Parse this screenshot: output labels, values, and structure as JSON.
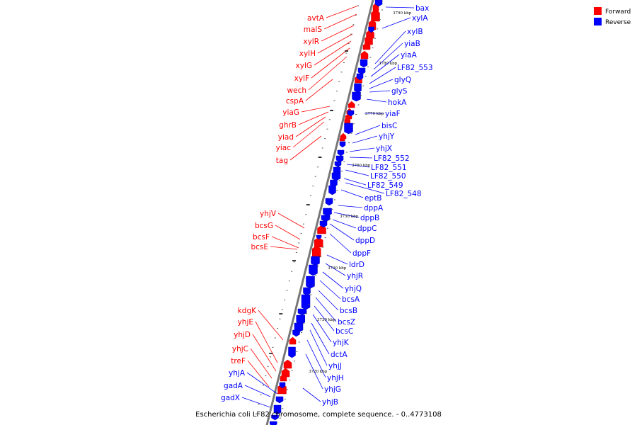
{
  "caption": "Escherichia coli LF82 chromosome, complete sequence. - 0..4773108",
  "legend": {
    "forward": {
      "label": "Forward",
      "color": "#ff0000"
    },
    "reverse": {
      "label": "Reverse",
      "color": "#0000ff"
    }
  },
  "kbp_labels": [
    "3790 kbp",
    "3780 kbp",
    "3770 kbp",
    "3760 kbp",
    "3750 kbp",
    "3740 kbp",
    "3730 kbp",
    "3720 kbp"
  ],
  "forward_genes": [
    "avtA",
    "malS",
    "xylR",
    "xylH",
    "xylG",
    "xylF",
    "wech",
    "cspA",
    "yiaG",
    "ghrB",
    "yiad",
    "yiac",
    "tag",
    "yhjV",
    "bcsG",
    "bcsF",
    "bcsE",
    "kdgK",
    "yhjE",
    "yhjD",
    "yhjC",
    "treF"
  ],
  "reverse_genes": [
    "bax",
    "xylA",
    "xylB",
    "yiaB",
    "yiaA",
    "LF82_553",
    "glyQ",
    "glyS",
    "hokA",
    "yiaF",
    "bisC",
    "yhjY",
    "yhjX",
    "LF82_552",
    "LF82_551",
    "LF82_550",
    "LF82_549",
    "LF82_548",
    "eptB",
    "dppA",
    "dppB",
    "dppC",
    "dppD",
    "dppF",
    "ldrD",
    "yhjR",
    "yhjQ",
    "bcsA",
    "bcsB",
    "bcsZ",
    "bcsC",
    "yhjK",
    "dctA",
    "yhjJ",
    "yhjH",
    "yhjG",
    "yhjB",
    "yhjA",
    "gadA",
    "gadX"
  ]
}
